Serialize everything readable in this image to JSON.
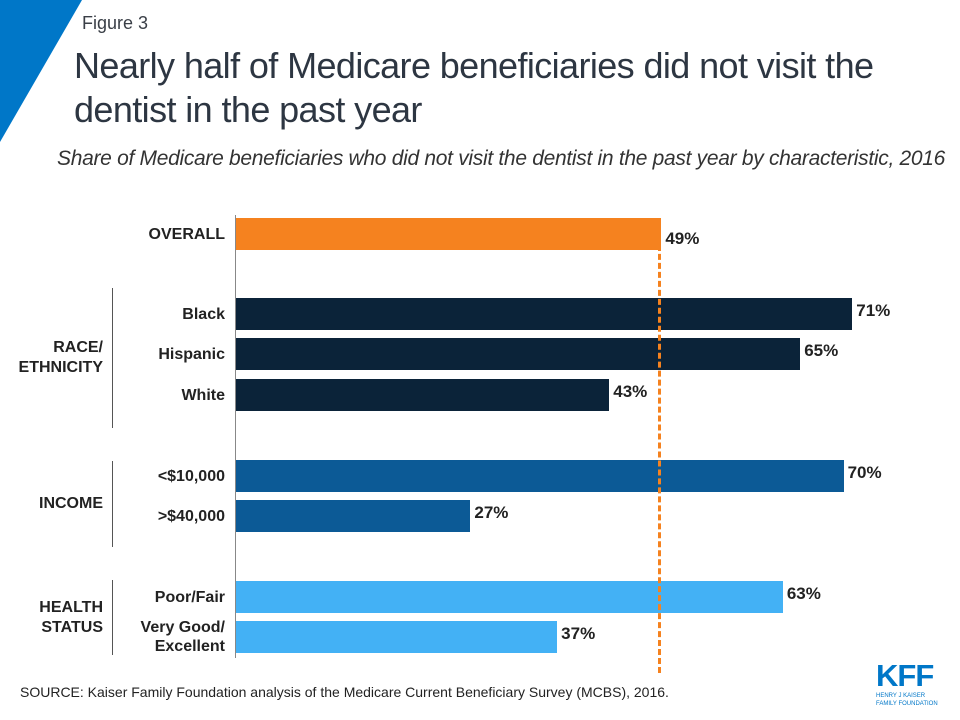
{
  "figure_label": "Figure 3",
  "title": "Nearly half of Medicare beneficiaries did not visit the dentist in the past year",
  "subtitle": "Share of Medicare beneficiaries who did not visit the dentist in the past year by characteristic, 2016",
  "source": "SOURCE: Kaiser Family Foundation analysis of the Medicare Current Beneficiary Survey (MCBS), 2016.",
  "logo": {
    "text": "KFF",
    "sub": "HENRY J KAISER FAMILY FOUNDATION"
  },
  "colors": {
    "overall": "#F5821F",
    "race": "#0B2339",
    "income": "#0C5A96",
    "health": "#43B1F5",
    "accent": "#0077C8"
  },
  "chart_data": {
    "type": "bar",
    "orientation": "horizontal",
    "xlim": [
      0,
      80
    ],
    "reference_line": {
      "value": 49,
      "style": "dashed",
      "color": "#F5821F"
    },
    "groups": [
      {
        "label": "",
        "items": [
          {
            "category": "OVERALL",
            "value": 49,
            "label": "49%",
            "color": "#F5821F"
          }
        ]
      },
      {
        "label": "RACE/ ETHNICITY",
        "items": [
          {
            "category": "Black",
            "value": 71,
            "label": "71%",
            "color": "#0B2339"
          },
          {
            "category": "Hispanic",
            "value": 65,
            "label": "65%",
            "color": "#0B2339"
          },
          {
            "category": "White",
            "value": 43,
            "label": "43%",
            "color": "#0B2339"
          }
        ]
      },
      {
        "label": "INCOME",
        "items": [
          {
            "category": "<$10,000",
            "value": 70,
            "label": "70%",
            "color": "#0C5A96"
          },
          {
            "category": ">$40,000",
            "value": 27,
            "label": "27%",
            "color": "#0C5A96"
          }
        ]
      },
      {
        "label": "HEALTH STATUS",
        "items": [
          {
            "category": "Poor/Fair",
            "value": 63,
            "label": "63%",
            "color": "#43B1F5"
          },
          {
            "category": "Very Good/ Excellent",
            "value": 37,
            "label": "37%",
            "color": "#43B1F5"
          }
        ]
      }
    ]
  }
}
